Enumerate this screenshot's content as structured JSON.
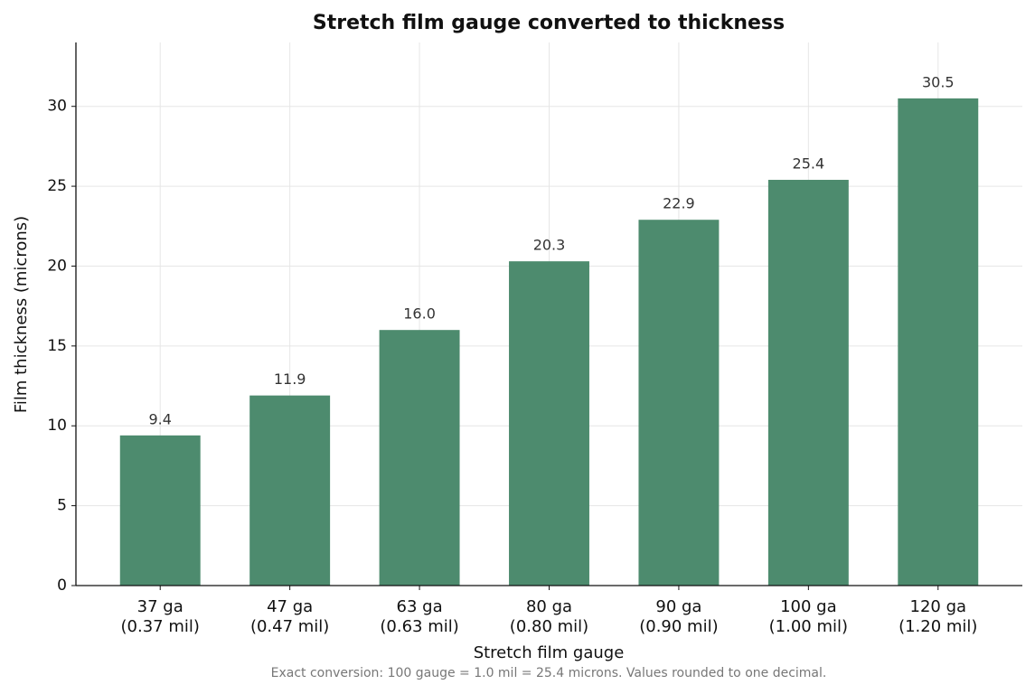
{
  "chart_data": {
    "type": "bar",
    "title": "Stretch film gauge converted to thickness",
    "x_label": "Stretch film gauge",
    "y_label": "Film thickness (microns)",
    "footnote": "Exact conversion: 100 gauge = 1.0 mil = 25.4 microns. Values rounded to one decimal.",
    "categories": [
      [
        "37 ga",
        "(0.37 mil)"
      ],
      [
        "47 ga",
        "(0.47 mil)"
      ],
      [
        "63 ga",
        "(0.63 mil)"
      ],
      [
        "80 ga",
        "(0.80 mil)"
      ],
      [
        "90 ga",
        "(0.90 mil)"
      ],
      [
        "100 ga",
        "(1.00 mil)"
      ],
      [
        "120 ga",
        "(1.20 mil)"
      ]
    ],
    "values": [
      9.4,
      11.9,
      16.0,
      20.3,
      22.9,
      25.4,
      30.5
    ],
    "value_labels": [
      "9.4",
      "11.9",
      "16.0",
      "20.3",
      "22.9",
      "25.4",
      "30.5"
    ],
    "color": "#4d8b6e",
    "ylim": [
      0,
      34
    ],
    "yticks": [
      0,
      5,
      10,
      15,
      20,
      25,
      30
    ],
    "grid": true
  }
}
